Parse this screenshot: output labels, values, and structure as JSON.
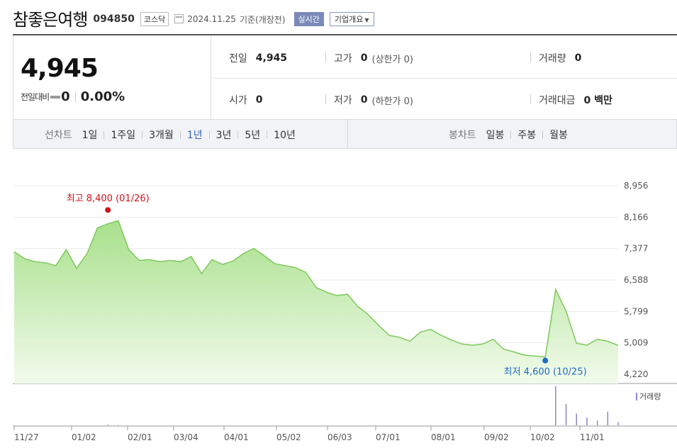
{
  "header": {
    "stock_name": "참좋은여행",
    "stock_code": "094850",
    "market": "코스닥",
    "date": "2024.11.25",
    "date_note": "기준(개장전)",
    "realtime_label": "실시간",
    "company_info_label": "기업개요"
  },
  "price": {
    "current": "4,945",
    "change_label": "전일대비",
    "change_value": "0",
    "change_rate": "0.00%"
  },
  "info": {
    "prev_close_label": "전일",
    "prev_close": "4,945",
    "high_label": "고가",
    "high": "0",
    "upper_limit": "(상한가 0)",
    "volume_label": "거래량",
    "volume": "0",
    "open_label": "시가",
    "open": "0",
    "low_label": "저가",
    "low": "0",
    "lower_limit": "(하한가 0)",
    "amount_label": "거래대금",
    "amount": "0 백만"
  },
  "periods": {
    "line_label": "선차트",
    "line_items": [
      "1일",
      "1주일",
      "3개월",
      "1년",
      "3년",
      "5년",
      "10년"
    ],
    "selected": "1년",
    "candle_label": "봉차트",
    "candle_items": [
      "일봉",
      "주봉",
      "월봉"
    ]
  },
  "colors": {
    "selected_period": "#3460c8",
    "line": "#7dc95a",
    "area_top": "#a8e08c",
    "area_bottom": "#f2fbec",
    "high_marker": "#d0111b",
    "low_marker": "#1f6bc8",
    "volume_bar": "#8c86c8"
  },
  "chart_data": {
    "type": "area",
    "y_ticks": [
      "8,956",
      "8,166",
      "7,377",
      "6,588",
      "5,799",
      "5,009",
      "4,220"
    ],
    "ylim": [
      4220,
      8956
    ],
    "x_ticks": [
      "11/27",
      "01/02",
      "02/01",
      "03/04",
      "04/01",
      "05/02",
      "06/03",
      "07/01",
      "08/01",
      "09/02",
      "10/02",
      "11/01"
    ],
    "x": [
      "11/27",
      "12/05",
      "12/13",
      "12/21",
      "12/29",
      "01/02",
      "01/08",
      "01/15",
      "01/22",
      "01/26",
      "02/01",
      "02/06",
      "02/13",
      "02/20",
      "02/27",
      "03/04",
      "03/11",
      "03/18",
      "03/25",
      "04/01",
      "04/08",
      "04/15",
      "04/22",
      "04/29",
      "05/02",
      "05/09",
      "05/16",
      "05/23",
      "05/30",
      "06/03",
      "06/10",
      "06/17",
      "06/24",
      "07/01",
      "07/08",
      "07/15",
      "07/22",
      "07/29",
      "08/01",
      "08/08",
      "08/15",
      "08/22",
      "08/29",
      "09/02",
      "09/09",
      "09/16",
      "09/23",
      "09/30",
      "10/02",
      "10/09",
      "10/16",
      "10/25",
      "11/01",
      "11/05",
      "11/08",
      "11/13",
      "11/18",
      "11/22",
      "11/25"
    ],
    "values": [
      7300,
      7120,
      7050,
      7020,
      6950,
      7350,
      6880,
      7250,
      7900,
      8000,
      8080,
      7350,
      7080,
      7100,
      7050,
      7080,
      7050,
      7180,
      6750,
      7100,
      6980,
      7060,
      7250,
      7380,
      7200,
      7000,
      6950,
      6900,
      6780,
      6400,
      6280,
      6200,
      6230,
      5920,
      5720,
      5450,
      5200,
      5150,
      5050,
      5280,
      5350,
      5200,
      5080,
      4980,
      4950,
      4980,
      5100,
      4850,
      4780,
      4700,
      4680,
      4650,
      6350,
      5800,
      5000,
      4950,
      5100,
      5050,
      4945
    ],
    "series": [
      {
        "values_ref": "values"
      }
    ],
    "high_annotation": "최고 8,400 (01/26)",
    "high": {
      "x": "01/26",
      "y": 8400
    },
    "low_annotation": "최저 4,600 (10/25)",
    "low": {
      "x": "10/25",
      "y": 4600
    },
    "volume_label": "거래량",
    "volume": [
      0,
      0,
      0,
      0,
      0,
      0,
      0,
      0,
      0,
      0.02,
      0.01,
      0,
      0,
      0,
      0,
      0,
      0,
      0,
      0,
      0,
      0,
      0,
      0,
      0,
      0,
      0,
      0,
      0,
      0,
      0,
      0,
      0,
      0,
      0,
      0,
      0,
      0,
      0,
      0,
      0,
      0,
      0,
      0,
      0,
      0,
      0,
      0,
      0,
      0,
      0,
      0,
      0,
      1.0,
      0.55,
      0.3,
      0.2,
      0.12,
      0.35,
      0.08
    ]
  }
}
